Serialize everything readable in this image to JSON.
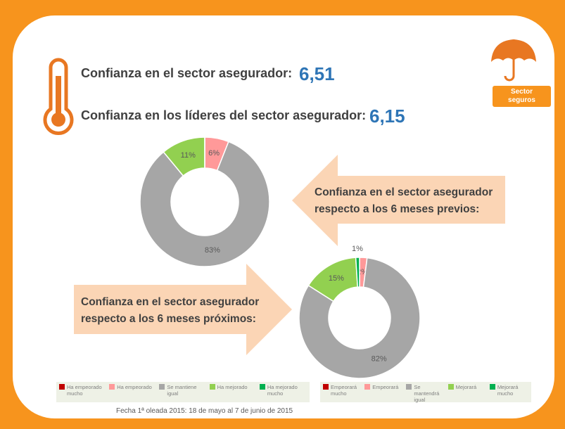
{
  "header": {
    "lines": [
      {
        "label": "Confianza en el sector asegurador:",
        "value": "6,51"
      },
      {
        "label": "Confianza en los líderes del sector asegurador:",
        "value": "6,15"
      }
    ],
    "badge": "Sector seguros"
  },
  "footer": "Fecha 1ª oleada 2015: 18 de mayo al 7 de junio de 2015",
  "chart_data": [
    {
      "type": "donut",
      "title": "Confianza en el sector asegurador respecto a los 6 meses previos:",
      "categories": [
        "Ha empeorado mucho",
        "Ha empeorado",
        "Se mantiene igual",
        "Ha mejorado",
        "Ha mejorado mucho"
      ],
      "values": [
        0,
        6,
        83,
        11,
        0
      ],
      "value_labels": [
        null,
        "6%",
        "83%",
        "11%",
        null
      ],
      "colors": [
        "#c00000",
        "#ff9999",
        "#a6a6a6",
        "#92d050",
        "#00b050"
      ]
    },
    {
      "type": "donut",
      "title": "Confianza en el sector asegurador respecto a los 6 meses próximos:",
      "categories": [
        "Empeorará mucho",
        "Empeorará",
        "Se mantendrá igual",
        "Mejorará",
        "Mejorará mucho"
      ],
      "values": [
        0,
        2,
        82,
        15,
        1
      ],
      "value_labels": [
        null,
        "2%",
        "82%",
        "15%",
        "1%"
      ],
      "colors": [
        "#c00000",
        "#ff9999",
        "#a6a6a6",
        "#92d050",
        "#00b050"
      ]
    }
  ]
}
